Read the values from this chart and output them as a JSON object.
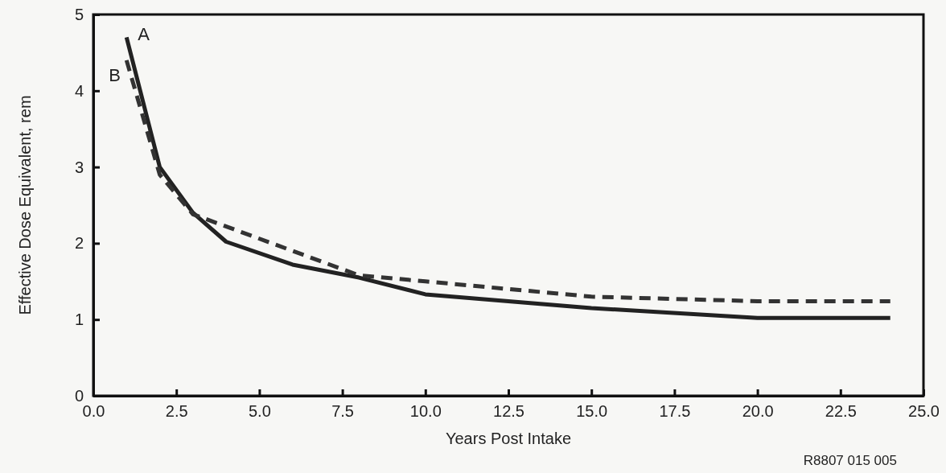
{
  "chart_data": {
    "type": "line",
    "xlabel": "Years Post Intake",
    "ylabel": "Effective Dose Equivalent, rem",
    "annotations": [
      "R8807 015 005"
    ],
    "xlim": [
      0,
      25
    ],
    "ylim": [
      0,
      5
    ],
    "xticks": [
      {
        "value": 0,
        "label": "0.0"
      },
      {
        "value": 2.5,
        "label": "2.5"
      },
      {
        "value": 5,
        "label": "5.0"
      },
      {
        "value": 7.5,
        "label": "7.5"
      },
      {
        "value": 10,
        "label": "10.0"
      },
      {
        "value": 12.5,
        "label": "12.5"
      },
      {
        "value": 15,
        "label": "15.0"
      },
      {
        "value": 17.5,
        "label": "17.5"
      },
      {
        "value": 20,
        "label": "20.0"
      },
      {
        "value": 22.5,
        "label": "22.5"
      },
      {
        "value": 25,
        "label": "25.0"
      }
    ],
    "yticks": [
      0,
      1,
      2,
      3,
      4,
      5
    ],
    "grid": false,
    "series": [
      {
        "name": "A",
        "color": "#222222",
        "line_style": "solid",
        "x": [
          1,
          2,
          3,
          4,
          6,
          8,
          10,
          15,
          20,
          24
        ],
        "values": [
          4.7,
          3.0,
          2.4,
          2.02,
          1.72,
          1.55,
          1.33,
          1.15,
          1.02,
          1.02
        ]
      },
      {
        "name": "B",
        "color": "#333333",
        "line_style": "dashed",
        "x": [
          1,
          2,
          3,
          8,
          10,
          15,
          20,
          24
        ],
        "values": [
          4.4,
          2.9,
          2.38,
          1.58,
          1.5,
          1.3,
          1.24,
          1.24
        ]
      }
    ]
  }
}
